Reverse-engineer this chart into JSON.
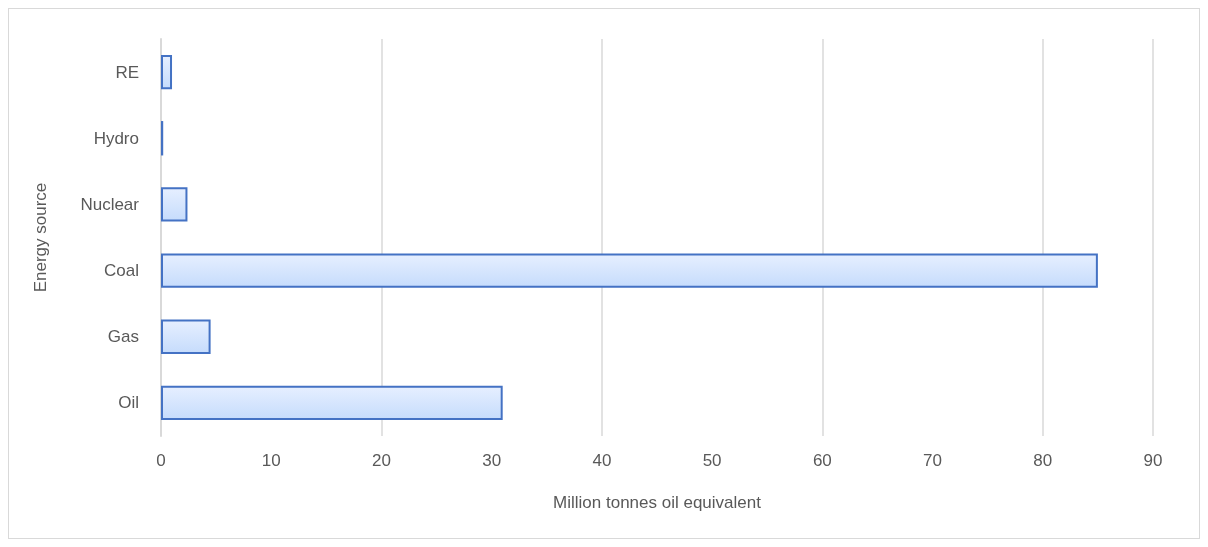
{
  "chart_data": {
    "type": "bar",
    "orientation": "horizontal",
    "xlabel": "Million tonnes oil equivalent",
    "ylabel": "Energy source",
    "categories": [
      "RE",
      "Hydro",
      "Nuclear",
      "Coal",
      "Gas",
      "Oil"
    ],
    "values": [
      1.0,
      0.2,
      2.4,
      85,
      4.5,
      31
    ],
    "color": "#4472c4",
    "xlim": [
      0,
      90
    ],
    "xticks": [
      0,
      10,
      20,
      30,
      40,
      50,
      60,
      70,
      80,
      90
    ],
    "grid": "x"
  }
}
